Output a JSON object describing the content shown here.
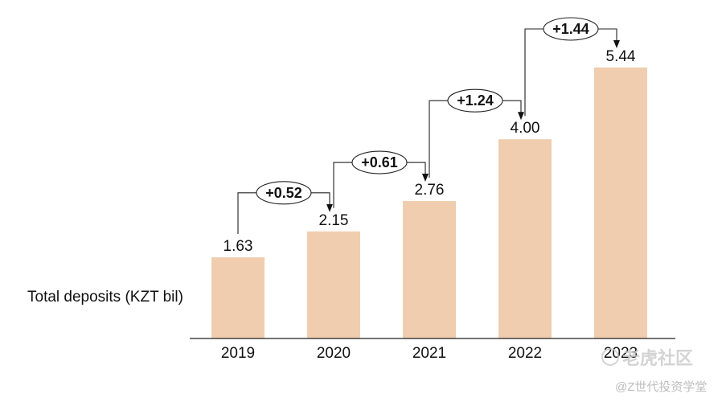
{
  "chart_data": {
    "type": "bar",
    "categories": [
      "2019",
      "2020",
      "2021",
      "2022",
      "2023"
    ],
    "series": [
      {
        "name": "Total deposits (KZT bil)",
        "values": [
          1.63,
          2.15,
          2.76,
          4.0,
          5.44
        ],
        "labels": [
          "1.63",
          "2.15",
          "2.76",
          "4.00",
          "5.44"
        ]
      }
    ],
    "increments": [
      "+0.52",
      "+0.61",
      "+1.24",
      "+1.44"
    ],
    "row_label": "Total deposits (KZT bil)",
    "ylim": [
      0,
      5.44
    ],
    "grid": false,
    "bar_color": "#f0cdae",
    "axis_color": "#222222",
    "text_color": "#111111"
  },
  "watermark": {
    "logo_text": "老虎社区",
    "handle": "@Z世代投资学堂"
  }
}
